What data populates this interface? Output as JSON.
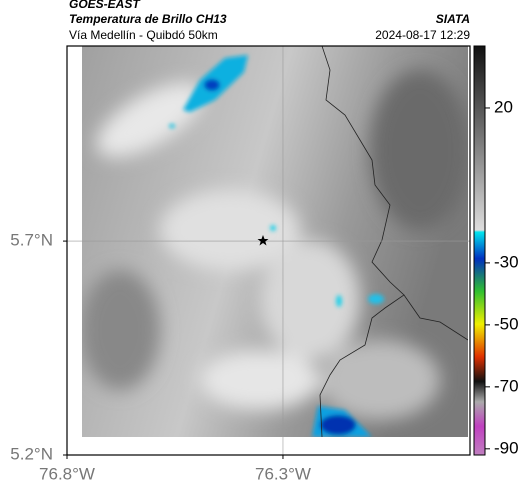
{
  "header": {
    "title": "GOES-EAST",
    "subtitle": "Temperatura de Brillo CH13",
    "route": "Vía Medellín - Quibdó 50km",
    "source": "SIATA",
    "timestamp": "2024-08-17 12:29"
  },
  "map": {
    "xlim": [
      -76.8,
      -75.867
    ],
    "ylim": [
      5.2,
      6.156
    ],
    "xticks": [
      {
        "value": -76.8,
        "label": "76.8°W"
      },
      {
        "value": -76.3,
        "label": "76.3°W"
      }
    ],
    "yticks": [
      {
        "value": 5.7,
        "label": "5.7°N"
      },
      {
        "value": 5.2,
        "label": "5.2°N"
      }
    ]
  },
  "colorbar": {
    "clim": [
      -92,
      40
    ],
    "ticks": [
      20,
      -30,
      -50,
      -70,
      -90
    ]
  }
}
